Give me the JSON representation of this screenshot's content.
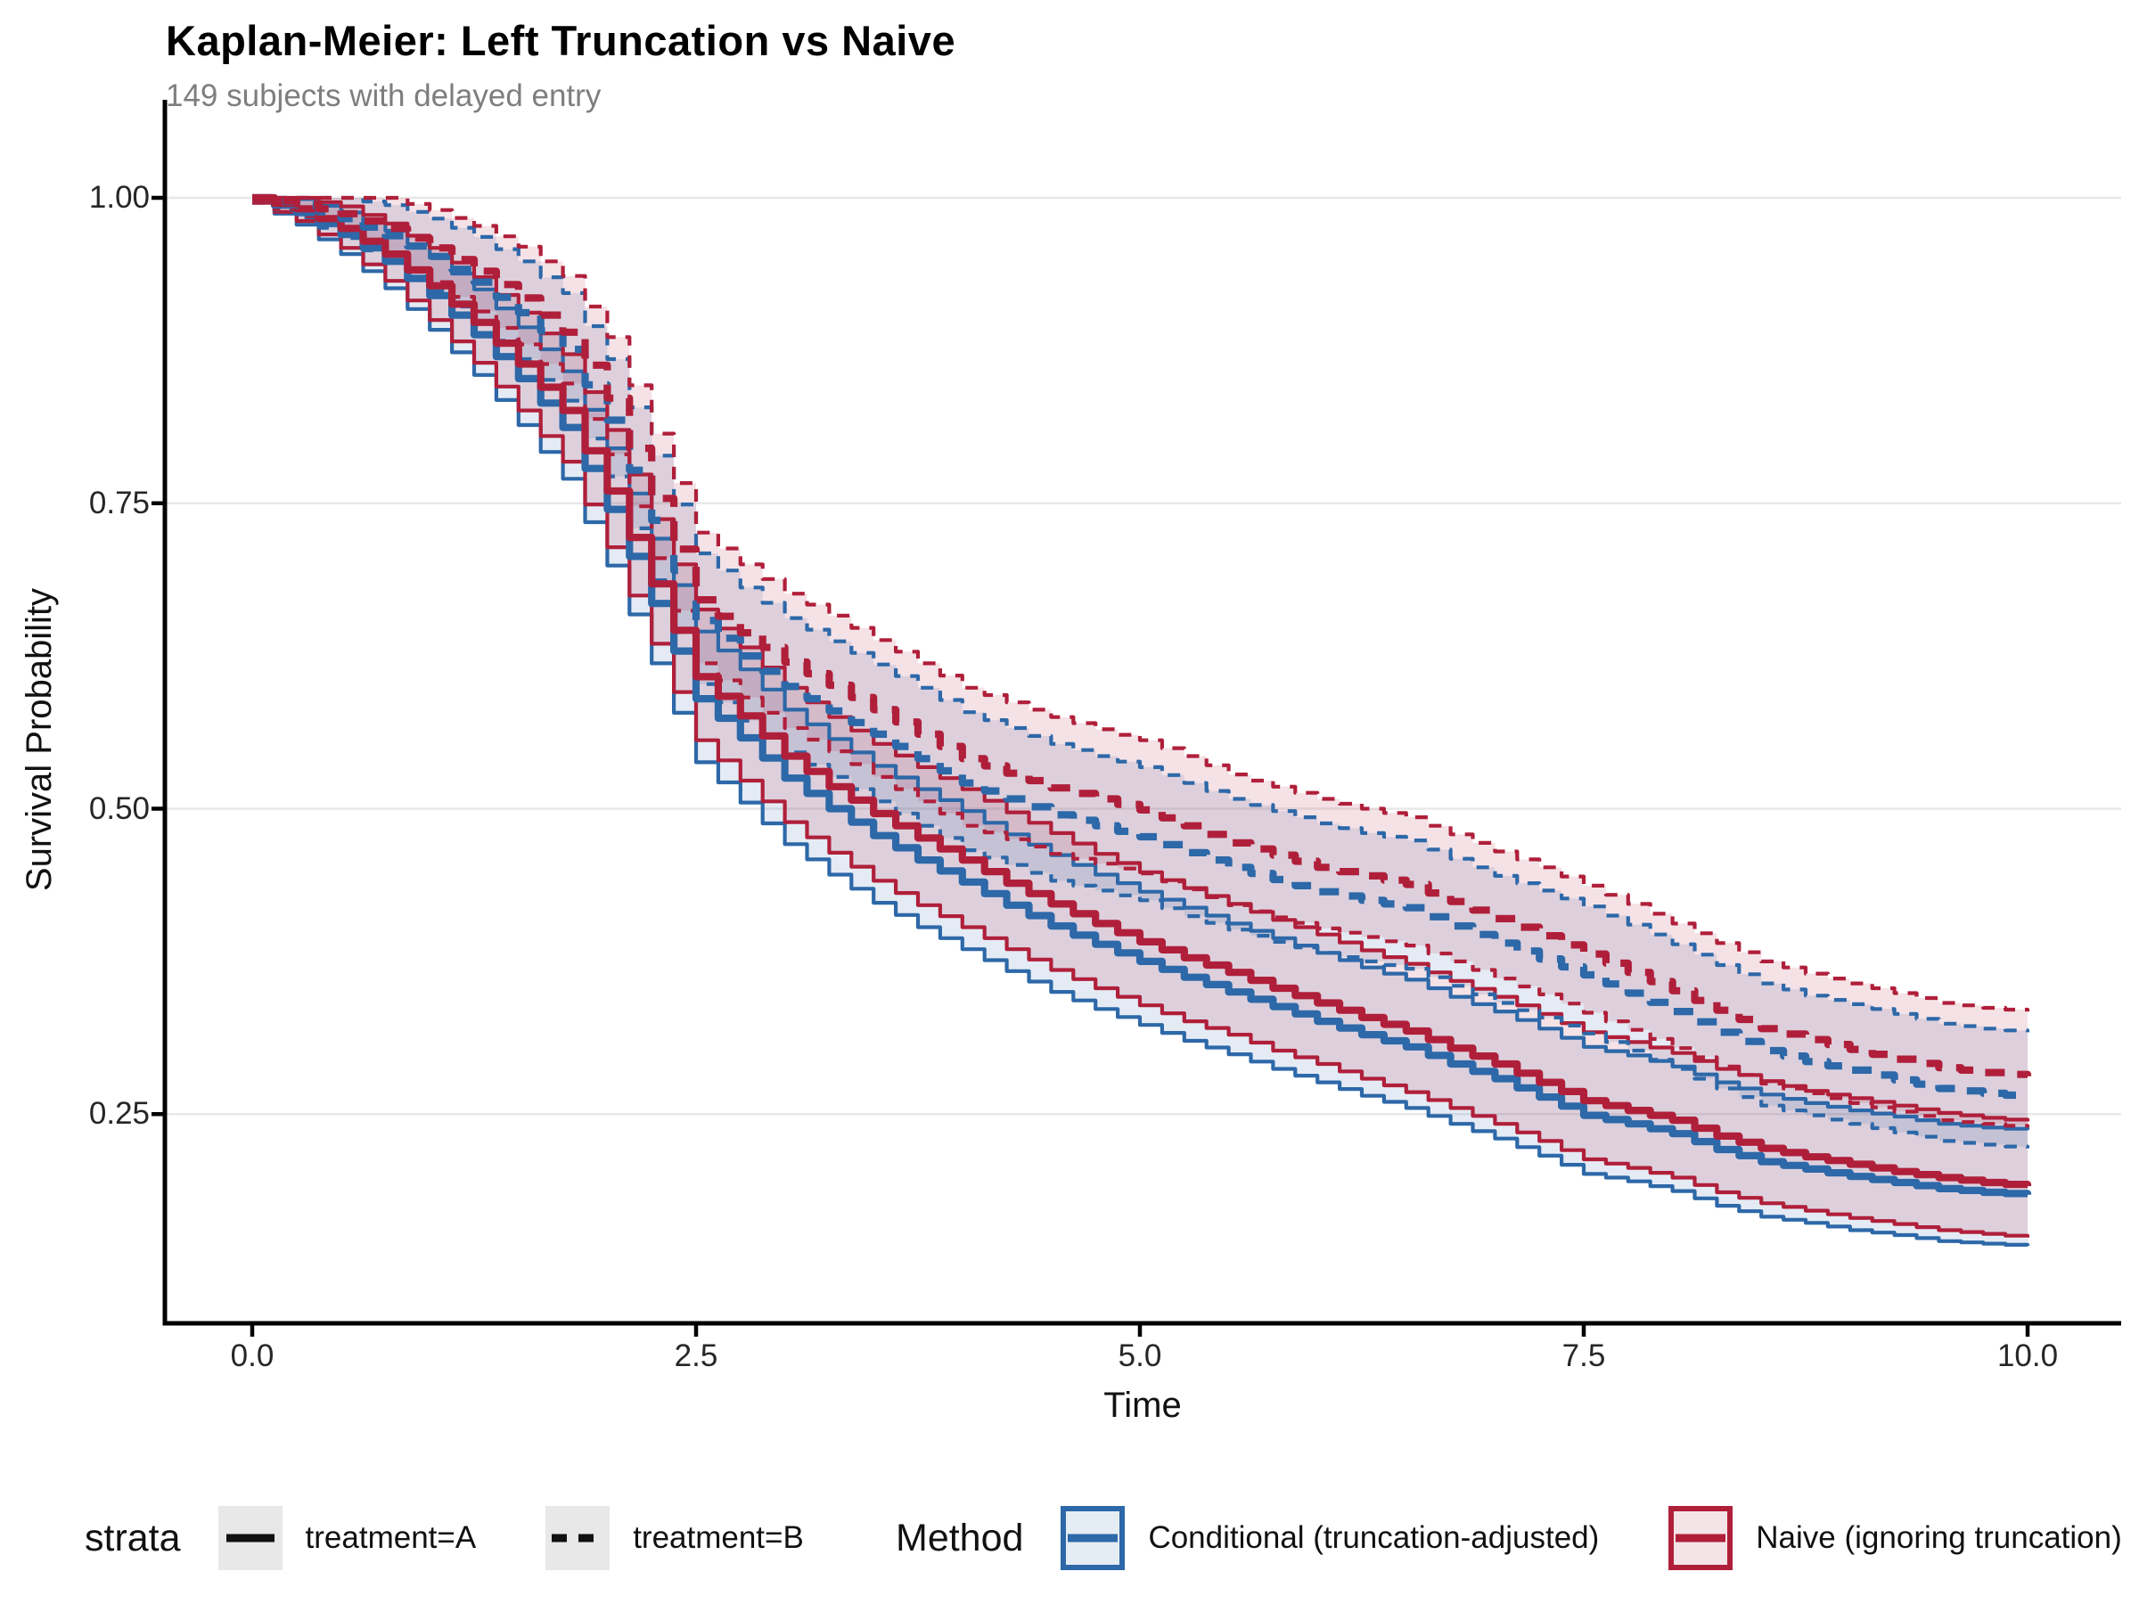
{
  "title": "Kaplan-Meier: Left Truncation vs Naive",
  "subtitle": "149 subjects with delayed entry",
  "axes": {
    "x": {
      "label": "Time",
      "ticks": [
        "0.0",
        "2.5",
        "5.0",
        "7.5",
        "10.0"
      ],
      "tick_values": [
        0,
        2.5,
        5,
        7.5,
        10
      ],
      "range": [
        -0.5,
        10.5
      ]
    },
    "y": {
      "label": "Survival Probability",
      "ticks": [
        "1.00",
        "0.75",
        "0.50",
        "0.25"
      ],
      "tick_values": [
        1.0,
        0.75,
        0.5,
        0.25
      ],
      "range": [
        0.08,
        1.07
      ]
    }
  },
  "colors": {
    "conditional_blue": "#2d68a8",
    "naive_red": "#b01f3a",
    "ribbon_opacity": 0.13,
    "gridline": "#e8e8e8",
    "axis_line": "#000000",
    "strata_key_bg": "#e8e8e8",
    "subtitle_gray": "#7e7e7e"
  },
  "legend": {
    "strata": {
      "title": "strata",
      "items": [
        {
          "label": "treatment=A",
          "linetype": "solid"
        },
        {
          "label": "treatment=B",
          "linetype": "dashed"
        }
      ]
    },
    "method": {
      "title": "Method",
      "items": [
        {
          "label": "Conditional (truncation-adjusted)",
          "color": "#2d68a8"
        },
        {
          "label": "Naive (ignoring truncation)",
          "color": "#b01f3a"
        }
      ]
    }
  },
  "chart_data": {
    "type": "line",
    "subtype": "kaplan-meier-step-with-ci-ribbons",
    "title": "Kaplan-Meier: Left Truncation vs Naive",
    "subtitle": "149 subjects with delayed entry",
    "xlabel": "Time",
    "ylabel": "Survival Probability",
    "xlim": [
      -0.5,
      10.5
    ],
    "ylim": [
      0.08,
      1.07
    ],
    "grid": "horizontal-only",
    "legend_position": "bottom",
    "t": [
      0,
      0.25,
      0.5,
      0.75,
      1,
      1.25,
      1.5,
      1.75,
      2,
      2.25,
      2.5,
      2.75,
      3,
      3.25,
      3.5,
      3.75,
      4,
      4.25,
      4.5,
      4.75,
      5,
      5.25,
      5.5,
      5.75,
      6,
      6.25,
      6.5,
      6.75,
      7,
      7.25,
      7.5,
      7.75,
      8,
      8.25,
      8.5,
      8.75,
      9,
      9.25,
      9.5,
      9.75,
      10
    ],
    "ci_lo_offset": [
      0.004,
      0.01,
      0.016,
      0.022,
      0.028,
      0.033,
      0.038,
      0.042,
      0.046,
      0.049,
      0.052,
      0.053,
      0.054,
      0.054,
      0.055,
      0.055,
      0.055,
      0.054,
      0.054,
      0.053,
      0.052,
      0.052,
      0.051,
      0.051,
      0.05,
      0.05,
      0.05,
      0.049,
      0.049,
      0.048,
      0.048,
      0.047,
      0.047,
      0.046,
      0.045,
      0.044,
      0.044,
      0.043,
      0.043,
      0.042,
      0.042
    ],
    "ci_hi_offset": [
      0.004,
      0.011,
      0.018,
      0.025,
      0.031,
      0.037,
      0.042,
      0.046,
      0.05,
      0.053,
      0.055,
      0.056,
      0.056,
      0.057,
      0.057,
      0.058,
      0.058,
      0.058,
      0.058,
      0.057,
      0.057,
      0.057,
      0.056,
      0.056,
      0.056,
      0.055,
      0.055,
      0.055,
      0.055,
      0.056,
      0.056,
      0.056,
      0.055,
      0.055,
      0.055,
      0.054,
      0.054,
      0.054,
      0.053,
      0.053,
      0.053
    ],
    "series": [
      {
        "id": "conditional-A",
        "method": "Conditional (truncation-adjusted)",
        "stratum": "treatment=A",
        "color": "#2d68a8",
        "linetype": "solid",
        "est": [
          1.0,
          0.988,
          0.97,
          0.948,
          0.92,
          0.888,
          0.852,
          0.812,
          0.745,
          0.668,
          0.59,
          0.558,
          0.525,
          0.5,
          0.478,
          0.458,
          0.44,
          0.421,
          0.404,
          0.389,
          0.375,
          0.362,
          0.35,
          0.338,
          0.326,
          0.315,
          0.305,
          0.291,
          0.279,
          0.264,
          0.249,
          0.242,
          0.234,
          0.221,
          0.211,
          0.205,
          0.199,
          0.194,
          0.189,
          0.186,
          0.184
        ]
      },
      {
        "id": "naive-A",
        "method": "Naive (ignoring truncation)",
        "stratum": "treatment=A",
        "color": "#b01f3a",
        "linetype": "solid",
        "est": [
          1.0,
          0.991,
          0.975,
          0.954,
          0.928,
          0.898,
          0.864,
          0.826,
          0.76,
          0.684,
          0.608,
          0.576,
          0.543,
          0.518,
          0.496,
          0.476,
          0.458,
          0.439,
          0.422,
          0.406,
          0.391,
          0.378,
          0.366,
          0.353,
          0.341,
          0.329,
          0.318,
          0.304,
          0.291,
          0.276,
          0.261,
          0.253,
          0.245,
          0.232,
          0.222,
          0.215,
          0.209,
          0.203,
          0.198,
          0.194,
          0.191
        ]
      },
      {
        "id": "conditional-B",
        "method": "Conditional (truncation-adjusted)",
        "stratum": "treatment=B",
        "color": "#2d68a8",
        "linetype": "dashed",
        "est": [
          1.0,
          0.994,
          0.983,
          0.969,
          0.952,
          0.931,
          0.906,
          0.876,
          0.818,
          0.736,
          0.654,
          0.625,
          0.6,
          0.58,
          0.561,
          0.541,
          0.521,
          0.508,
          0.495,
          0.486,
          0.477,
          0.464,
          0.452,
          0.442,
          0.432,
          0.425,
          0.419,
          0.404,
          0.39,
          0.377,
          0.364,
          0.349,
          0.334,
          0.317,
          0.302,
          0.293,
          0.286,
          0.278,
          0.271,
          0.267,
          0.264
        ]
      },
      {
        "id": "naive-B",
        "method": "Naive (ignoring truncation)",
        "stratum": "treatment=B",
        "color": "#b01f3a",
        "linetype": "dashed",
        "est": [
          1.0,
          0.995,
          0.987,
          0.975,
          0.959,
          0.94,
          0.918,
          0.89,
          0.836,
          0.754,
          0.671,
          0.644,
          0.62,
          0.601,
          0.581,
          0.561,
          0.541,
          0.529,
          0.517,
          0.508,
          0.499,
          0.486,
          0.472,
          0.462,
          0.452,
          0.445,
          0.438,
          0.424,
          0.41,
          0.396,
          0.381,
          0.366,
          0.351,
          0.335,
          0.32,
          0.311,
          0.303,
          0.295,
          0.288,
          0.284,
          0.281
        ]
      }
    ]
  }
}
